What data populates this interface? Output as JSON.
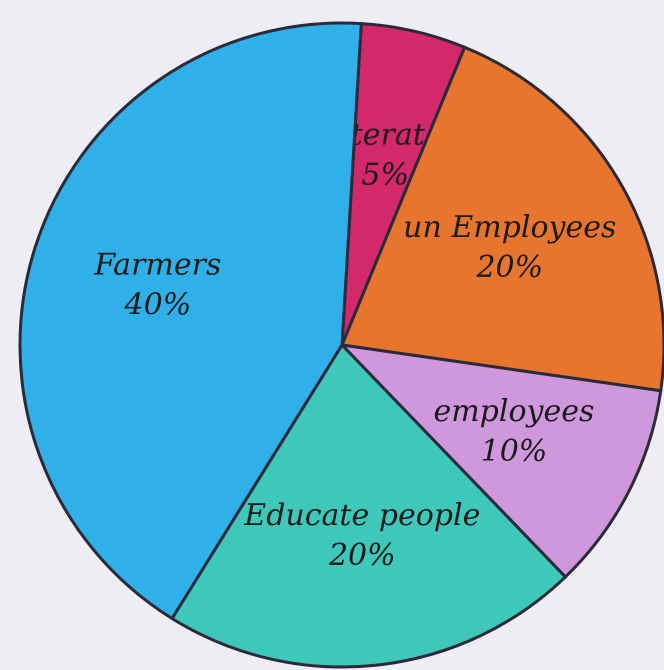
{
  "chart_data": {
    "type": "pie",
    "categories": [
      "illiterates",
      "un Employees",
      "employees",
      "Educate people",
      "Farmers"
    ],
    "values": [
      5,
      20,
      10,
      20,
      40
    ],
    "value_labels": [
      "5%",
      "20%",
      "10%",
      "20%",
      "40%"
    ],
    "colors": [
      "#d3286a",
      "#e8752e",
      "#cf98dd",
      "#3ec8ba",
      "#2fb0e8"
    ]
  }
}
